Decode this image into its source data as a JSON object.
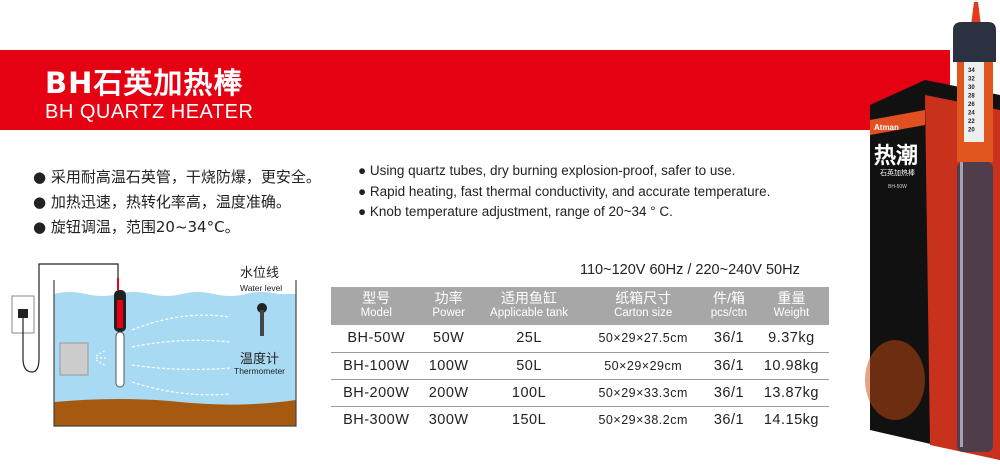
{
  "header": {
    "title": "BH石英加热棒",
    "subtitle": "BH QUARTZ HEATER",
    "banner_color": "#e50012"
  },
  "features_cn": [
    "● 采用耐高温石英管，干烧防爆，更安全。",
    "● 加热迅速，热转化率高，温度准确。",
    "● 旋钮调温，范围20~34°C。"
  ],
  "features_en": [
    "● Using quartz tubes, dry burning explosion-proof, safer to use.",
    "● Rapid heating, fast thermal conductivity, and accurate temperature.",
    "● Knob temperature adjustment, range of 20~34 ° C."
  ],
  "diagram": {
    "water_level_cn": "水位线",
    "water_level_en": "Water level",
    "thermometer_cn": "温度计",
    "thermometer_en": "Thermometer"
  },
  "voltage": "110~120V 60Hz / 220~240V 50Hz",
  "table": {
    "headers": [
      {
        "cn": "型号",
        "en": "Model"
      },
      {
        "cn": "功率",
        "en": "Power"
      },
      {
        "cn": "适用鱼缸",
        "en": "Applicable tank"
      },
      {
        "cn": "纸箱尺寸",
        "en": "Carton size"
      },
      {
        "cn": "件/箱",
        "en": "pcs/ctn"
      },
      {
        "cn": "重量",
        "en": "Weight"
      }
    ],
    "rows": [
      [
        "BH-50W",
        "50W",
        "25L",
        "50×29×27.5cm",
        "36/1",
        "9.37kg"
      ],
      [
        "BH-100W",
        "100W",
        "50L",
        "50×29×29cm",
        "36/1",
        "10.98kg"
      ],
      [
        "BH-200W",
        "200W",
        "100L",
        "50×29×33.3cm",
        "36/1",
        "13.87kg"
      ],
      [
        "BH-300W",
        "300W",
        "150L",
        "50×29×38.2cm",
        "36/1",
        "14.15kg"
      ]
    ]
  },
  "product": {
    "box_brand": "Atman",
    "box_title": "热潮",
    "box_subtitle": "石英加热棒",
    "box_model": "BH-50W",
    "scale": [
      "34",
      "32",
      "30",
      "28",
      "26",
      "24",
      "22",
      "20"
    ]
  }
}
